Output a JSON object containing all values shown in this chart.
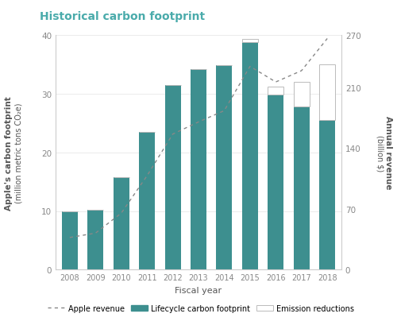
{
  "title": "Historical carbon footprint",
  "years": [
    2008,
    2009,
    2010,
    2011,
    2012,
    2013,
    2014,
    2015,
    2016,
    2017,
    2018
  ],
  "lifecycle_footprint": [
    10.0,
    10.2,
    15.7,
    23.5,
    31.5,
    34.2,
    34.8,
    38.8,
    29.8,
    27.8,
    25.5
  ],
  "emission_reductions": [
    0,
    0,
    0,
    0,
    0,
    0,
    0,
    0.5,
    1.4,
    4.2,
    9.5
  ],
  "apple_revenue": [
    37,
    42,
    65,
    108,
    156,
    170,
    183,
    234,
    216,
    229,
    266
  ],
  "bar_color": "#3d8f8f",
  "emission_color": "#ffffff",
  "emission_edge_color": "#bbbbbb",
  "line_color": "#888888",
  "ylabel_left_bold": "Apple's carbon footprint",
  "ylabel_left_normal": " (million metric tons CO₂e)",
  "ylabel_right_bold": "Annual revenue",
  "ylabel_right_normal": " (billion $)",
  "xlabel": "Fiscal year",
  "ylim_left": [
    0,
    40
  ],
  "ylim_right": [
    0,
    270
  ],
  "yticks_left": [
    0,
    10,
    20,
    30,
    40
  ],
  "yticks_right": [
    0,
    70,
    140,
    210,
    270
  ],
  "legend_revenue": "Apple revenue",
  "legend_lifecycle": "Lifecycle carbon footprint",
  "legend_emission": "Emission reductions",
  "title_color": "#4aabab",
  "axis_label_color": "#555555",
  "tick_color": "#888888",
  "background_color": "#ffffff"
}
